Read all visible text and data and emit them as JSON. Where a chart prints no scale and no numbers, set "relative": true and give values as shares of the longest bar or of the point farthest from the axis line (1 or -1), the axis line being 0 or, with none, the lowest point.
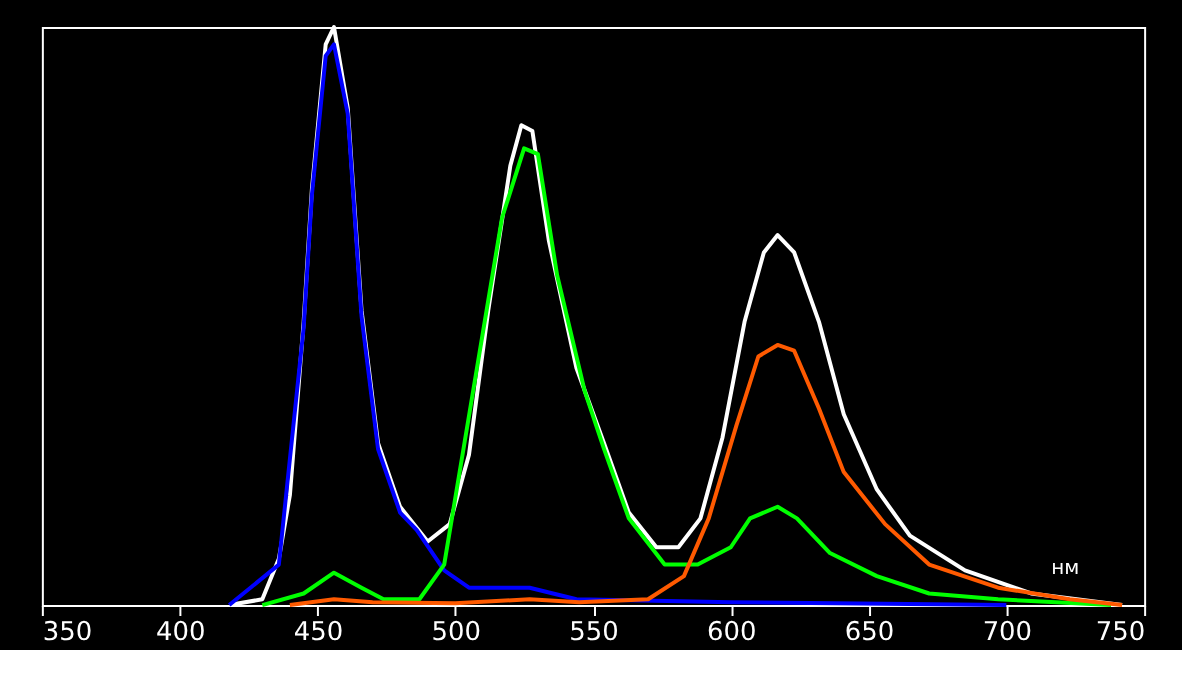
{
  "chart_data": {
    "type": "line",
    "relative": true,
    "xlabel": "нм",
    "xlim": [
      350,
      750
    ],
    "xticks": [
      350,
      400,
      450,
      500,
      550,
      600,
      650,
      700,
      750
    ],
    "grid": false,
    "legend": false,
    "marker": "none",
    "line_style": "solid",
    "series": [
      {
        "color": "#ffffff",
        "x": [
          418,
          430,
          436,
          440,
          445,
          448,
          453,
          456,
          461,
          466,
          472,
          480,
          490,
          498,
          505,
          512,
          520,
          524,
          528,
          534,
          539,
          544,
          554,
          563,
          573,
          581,
          589,
          597,
          605,
          612,
          617,
          623,
          632,
          641,
          653,
          665,
          685,
          709,
          742
        ],
        "values": [
          0,
          0.01,
          0.08,
          0.19,
          0.49,
          0.72,
          0.97,
          1.0,
          0.86,
          0.51,
          0.28,
          0.17,
          0.11,
          0.14,
          0.26,
          0.51,
          0.76,
          0.83,
          0.82,
          0.63,
          0.52,
          0.41,
          0.28,
          0.16,
          0.1,
          0.1,
          0.15,
          0.29,
          0.49,
          0.61,
          0.64,
          0.61,
          0.49,
          0.33,
          0.2,
          0.12,
          0.06,
          0.02,
          0
        ]
      },
      {
        "color": "#0000ff",
        "x": [
          418,
          436,
          445,
          448,
          453,
          456,
          461,
          466,
          472,
          480,
          486,
          496,
          505,
          527,
          544,
          600,
          700
        ],
        "values": [
          0,
          0.07,
          0.48,
          0.71,
          0.95,
          0.97,
          0.85,
          0.5,
          0.27,
          0.16,
          0.13,
          0.06,
          0.03,
          0.03,
          0.01,
          0.005,
          0
        ]
      },
      {
        "color": "#00ff00",
        "x": [
          430,
          445,
          456,
          466,
          474,
          487,
          496,
          503,
          510,
          517,
          525,
          530,
          537,
          547,
          554,
          563,
          576,
          588,
          600,
          607,
          617,
          624,
          636,
          653,
          672,
          697,
          738
        ],
        "values": [
          0,
          0.02,
          0.056,
          0.03,
          0.01,
          0.01,
          0.07,
          0.27,
          0.47,
          0.67,
          0.79,
          0.78,
          0.57,
          0.37,
          0.27,
          0.15,
          0.07,
          0.07,
          0.1,
          0.15,
          0.17,
          0.15,
          0.09,
          0.05,
          0.02,
          0.01,
          0
        ]
      },
      {
        "color": "#ff5a00",
        "x": [
          440,
          456,
          470,
          500,
          527,
          545,
          570,
          583,
          592,
          602,
          610,
          617,
          623,
          632,
          641,
          656,
          672,
          697,
          723,
          742
        ],
        "values": [
          0,
          0.01,
          0.005,
          0.003,
          0.01,
          0.005,
          0.01,
          0.05,
          0.15,
          0.31,
          0.43,
          0.45,
          0.44,
          0.34,
          0.23,
          0.14,
          0.07,
          0.03,
          0.01,
          0
        ]
      }
    ]
  }
}
